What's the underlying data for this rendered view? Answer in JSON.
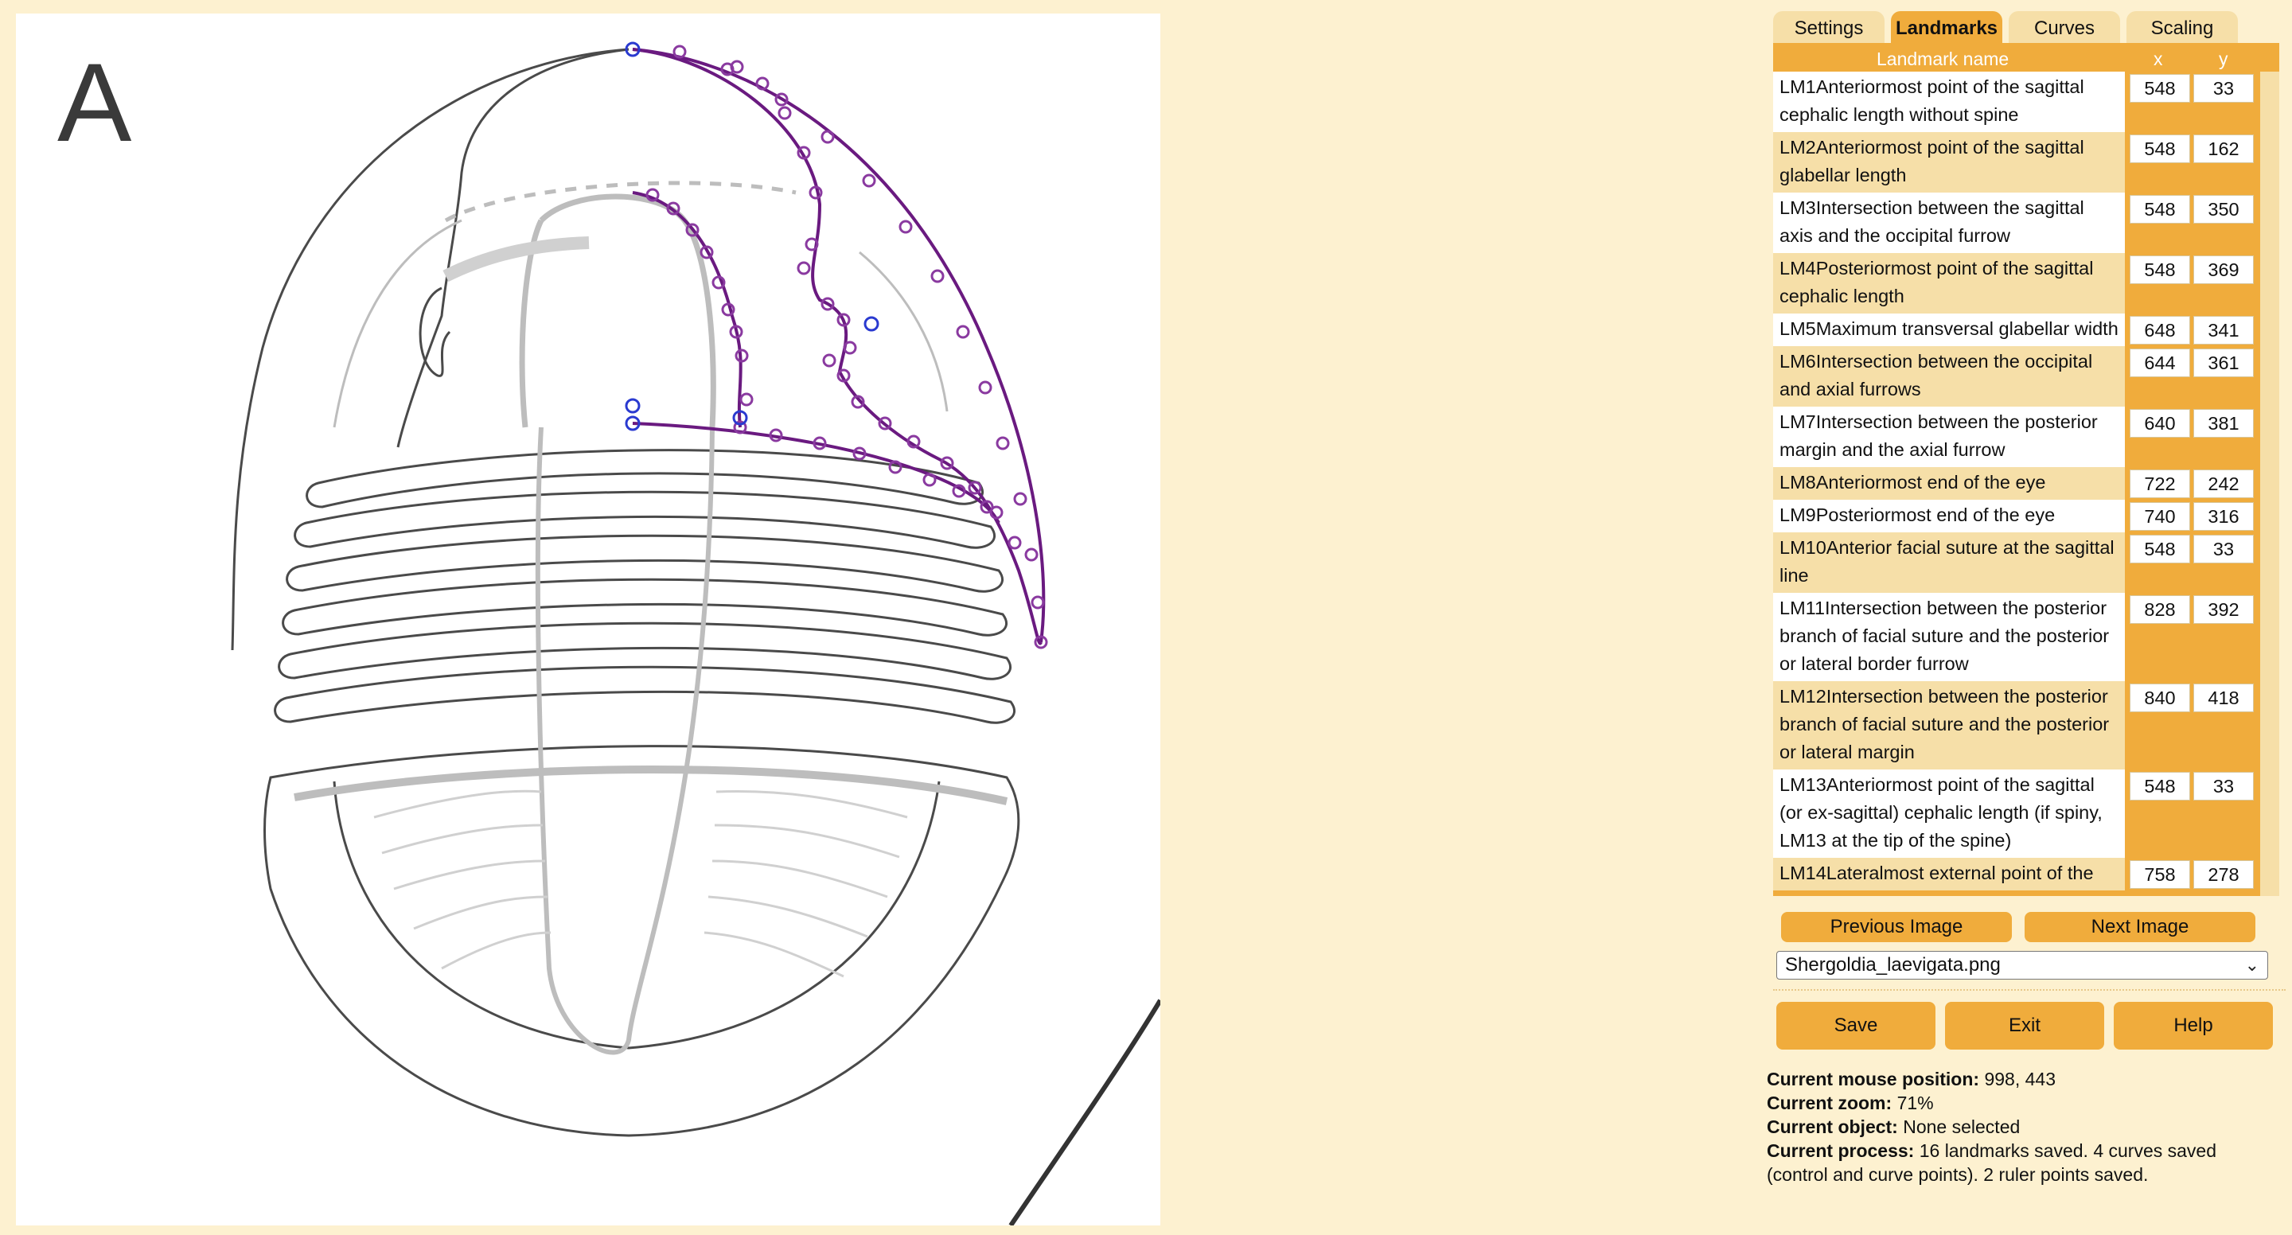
{
  "tabs": [
    {
      "label": "Settings",
      "active": false
    },
    {
      "label": "Landmarks",
      "active": true
    },
    {
      "label": "Curves",
      "active": false
    },
    {
      "label": "Scaling",
      "active": false
    }
  ],
  "canvas": {
    "figure_label": "A",
    "colors": {
      "curve": "#6a1a80",
      "point": "#8a3aa0",
      "selected_point": "#2a3ad0",
      "drawing": "#4a4a4a",
      "drawing_light": "#bdbdbd"
    }
  },
  "table": {
    "headers": {
      "name": "Landmark name",
      "x": "x",
      "y": "y"
    },
    "rows": [
      {
        "name": "LM1Anteriormost point of the sagittal cephalic length without spine",
        "x": "548",
        "y": "33"
      },
      {
        "name": "LM2Anteriormost point of the sagittal glabellar length",
        "x": "548",
        "y": "162"
      },
      {
        "name": "LM3Intersection between the sagittal axis and the occipital furrow",
        "x": "548",
        "y": "350"
      },
      {
        "name": "LM4Posteriormost point of the sagittal cephalic length",
        "x": "548",
        "y": "369"
      },
      {
        "name": "LM5Maximum transversal glabellar width",
        "x": "648",
        "y": "341"
      },
      {
        "name": "LM6Intersection between the occipital and axial furrows",
        "x": "644",
        "y": "361"
      },
      {
        "name": "LM7Intersection between the posterior margin and the axial furrow",
        "x": "640",
        "y": "381"
      },
      {
        "name": "LM8Anteriormost end of the eye",
        "x": "722",
        "y": "242"
      },
      {
        "name": "LM9Posteriormost end of the eye",
        "x": "740",
        "y": "316"
      },
      {
        "name": "LM10Anterior facial suture at the sagittal line",
        "x": "548",
        "y": "33"
      },
      {
        "name": "LM11Intersection between the posterior branch of facial suture and the posterior or lateral border furrow",
        "x": "828",
        "y": "392"
      },
      {
        "name": "LM12Intersection between the posterior branch of facial suture and the posterior or lateral margin",
        "x": "840",
        "y": "418"
      },
      {
        "name": "LM13Anteriormost point of the sagittal (or ex-sagittal) cephalic length (if spiny, LM13 at the tip of the spine)",
        "x": "548",
        "y": "33"
      },
      {
        "name": "LM14Lateralmost external point of the",
        "x": "758",
        "y": "278"
      }
    ]
  },
  "buttons": {
    "previous_image": "Previous Image",
    "next_image": "Next Image",
    "save": "Save",
    "exit": "Exit",
    "help": "Help"
  },
  "image_select": {
    "selected": "Shergoldia_laevigata.png"
  },
  "status": {
    "mouse_label": "Current mouse position:",
    "mouse_value": "998, 443",
    "zoom_label": "Current zoom:",
    "zoom_value": "71%",
    "object_label": "Current object:",
    "object_value": "None selected",
    "process_label": "Current process:",
    "process_value": "16 landmarks saved. 4 curves saved (control and curve points). 2 ruler points saved."
  }
}
